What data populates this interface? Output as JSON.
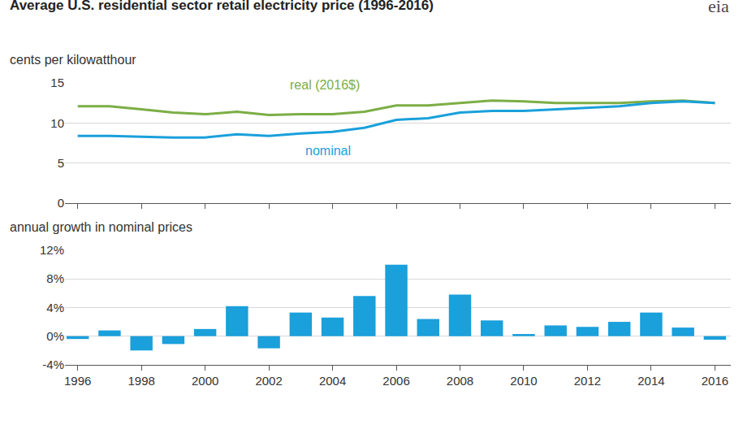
{
  "logo": "eia",
  "chart_data": [
    {
      "type": "line",
      "title": "Average U.S. residential sector retail electricity price (1996-2016)",
      "ylabel": "cents per kilowatthour",
      "x": [
        1996,
        1997,
        1998,
        1999,
        2000,
        2001,
        2002,
        2003,
        2004,
        2005,
        2006,
        2007,
        2008,
        2009,
        2010,
        2011,
        2012,
        2013,
        2014,
        2015,
        2016
      ],
      "series": [
        {
          "name": "real (2016$)",
          "color": "#7cae45",
          "values": [
            12.1,
            12.1,
            11.7,
            11.3,
            11.1,
            11.4,
            11.0,
            11.1,
            11.1,
            11.4,
            12.2,
            12.2,
            12.5,
            12.8,
            12.7,
            12.5,
            12.5,
            12.5,
            12.7,
            12.8,
            12.5
          ]
        },
        {
          "name": "nominal",
          "color": "#1aa0db",
          "values": [
            8.4,
            8.4,
            8.3,
            8.2,
            8.2,
            8.6,
            8.4,
            8.7,
            8.9,
            9.4,
            10.4,
            10.6,
            11.3,
            11.5,
            11.5,
            11.7,
            11.9,
            12.1,
            12.5,
            12.7,
            12.5
          ]
        }
      ],
      "xlim": [
        1995.6,
        2016.5
      ],
      "xticks": [
        1996,
        1998,
        2000,
        2002,
        2004,
        2006,
        2008,
        2010,
        2012,
        2014,
        2016
      ],
      "ylim": [
        0,
        15
      ],
      "yticks": [
        0,
        5,
        10,
        15
      ],
      "grid": true,
      "tick_labels": "y"
    },
    {
      "type": "bar",
      "ylabel": "annual growth in nominal prices",
      "x": [
        1996,
        1997,
        1998,
        1999,
        2000,
        2001,
        2002,
        2003,
        2004,
        2005,
        2006,
        2007,
        2008,
        2009,
        2010,
        2011,
        2012,
        2013,
        2014,
        2015,
        2016
      ],
      "values": [
        -0.4,
        0.8,
        -2.0,
        -1.1,
        1.0,
        4.2,
        -1.7,
        3.3,
        2.6,
        5.6,
        10.0,
        2.4,
        5.8,
        2.2,
        0.3,
        1.5,
        1.3,
        2.0,
        3.3,
        1.2,
        -0.5
      ],
      "color": "#1aa0db",
      "xlim": [
        1995.6,
        2016.5
      ],
      "xticks": [
        1996,
        1998,
        2000,
        2002,
        2004,
        2006,
        2008,
        2010,
        2012,
        2014,
        2016
      ],
      "ylim": [
        -4,
        12
      ],
      "yticks": [
        {
          "value": -4,
          "label": "-4%"
        },
        {
          "value": 0,
          "label": "0%"
        },
        {
          "value": 4,
          "label": "4%"
        },
        {
          "value": 8,
          "label": "8%"
        },
        {
          "value": 12,
          "label": "12%"
        }
      ],
      "grid": true
    }
  ]
}
